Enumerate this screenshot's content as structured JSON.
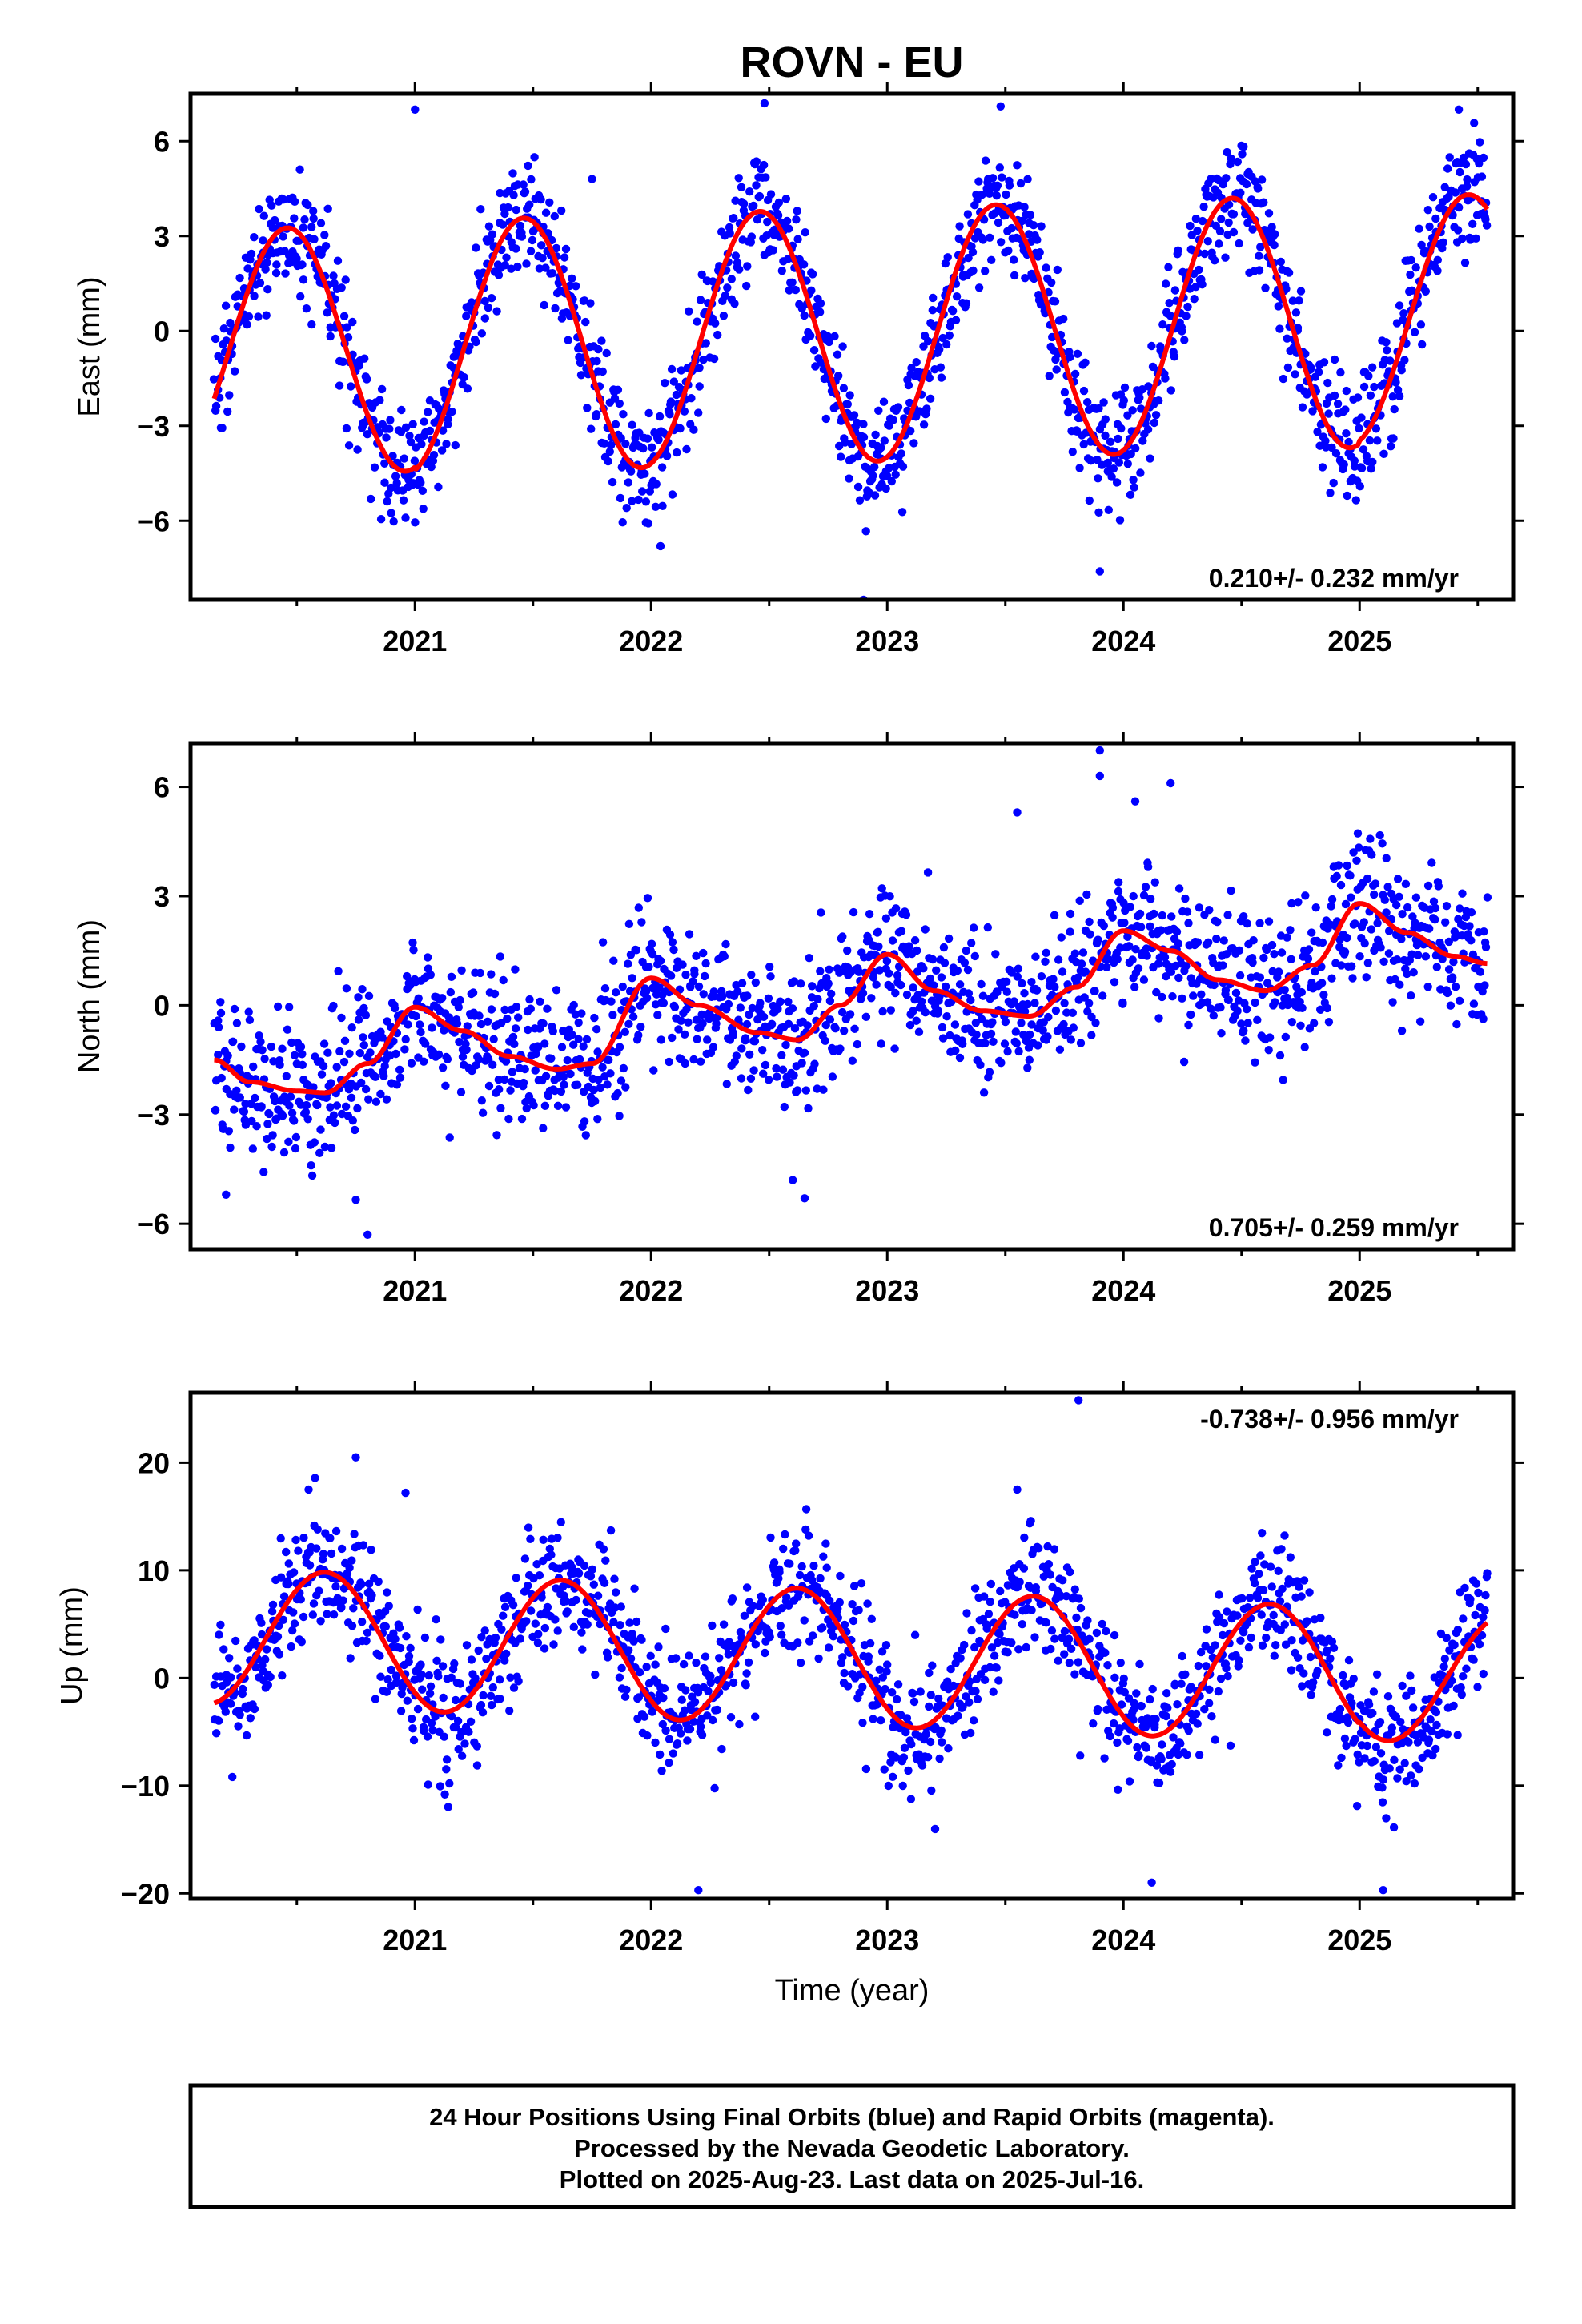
{
  "title": "ROVN - EU",
  "xlabel": "Time (year)",
  "footer": {
    "line1": "24 Hour Positions Using Final Orbits (blue) and Rapid Orbits (magenta).",
    "line2": "Processed by the Nevada Geodetic Laboratory.",
    "line3": "Plotted on 2025-Aug-23. Last data on 2025-Jul-16."
  },
  "colors": {
    "points": "#0000ff",
    "fit": "#ff0000",
    "frame": "#000000"
  },
  "chart_data": [
    {
      "type": "scatter",
      "panel": "east",
      "ylabel": "East (mm)",
      "rate_text": "0.210+/- 0.232 mm/yr",
      "rate_position": "bottom-right",
      "xlim": [
        2020.05,
        2025.65
      ],
      "ylim": [
        -8.5,
        7.5
      ],
      "yticks": [
        -6,
        -3,
        0,
        3,
        6
      ],
      "xticks": [
        2021,
        2022,
        2023,
        2024,
        2025
      ],
      "data_start": 2020.15,
      "data_end": 2025.54,
      "fit": {
        "offset": -0.15,
        "rate": 0.21,
        "ref": 2022.8,
        "amp": [
          3.9,
          4.0,
          4.0,
          4.0,
          4.0,
          3.9
        ],
        "phase_peak": 0.46
      },
      "noise": 0.95,
      "n_points": 1550,
      "outliers": [
        [
          2021.0,
          7.0
        ],
        [
          2022.48,
          7.2
        ],
        [
          2023.48,
          7.1
        ],
        [
          2022.9,
          -8.5
        ],
        [
          2023.9,
          -7.6
        ],
        [
          2025.42,
          7.0
        ],
        [
          2021.75,
          4.8
        ],
        [
          2022.04,
          -6.8
        ]
      ]
    },
    {
      "type": "scatter",
      "panel": "north",
      "ylabel": "North (mm)",
      "rate_text": "0.705+/- 0.259 mm/yr",
      "rate_position": "bottom-right",
      "xlim": [
        2020.05,
        2025.65
      ],
      "ylim": [
        -6.7,
        7.2
      ],
      "yticks": [
        -6,
        -3,
        0,
        3,
        6
      ],
      "xticks": [
        2021,
        2022,
        2023,
        2024,
        2025
      ],
      "data_start": 2020.15,
      "data_end": 2025.54,
      "fit_curve": {
        "x": [
          2020.15,
          2020.3,
          2020.5,
          2020.62,
          2020.8,
          2021.0,
          2021.2,
          2021.4,
          2021.6,
          2021.75,
          2022.0,
          2022.2,
          2022.45,
          2022.62,
          2022.8,
          2023.0,
          2023.2,
          2023.4,
          2023.6,
          2023.8,
          2024.0,
          2024.2,
          2024.4,
          2024.6,
          2024.8,
          2025.0,
          2025.2,
          2025.4,
          2025.54
        ],
        "y": [
          -1.5,
          -2.1,
          -2.35,
          -2.4,
          -1.6,
          -0.05,
          -0.7,
          -1.4,
          -1.75,
          -1.6,
          0.75,
          0.0,
          -0.75,
          -0.95,
          0.0,
          1.4,
          0.4,
          -0.15,
          -0.3,
          0.5,
          2.05,
          1.5,
          0.7,
          0.4,
          1.1,
          2.8,
          2.0,
          1.35,
          1.15
        ]
      },
      "noise": 1.0,
      "n_points": 1550,
      "outliers": [
        [
          2023.9,
          7.0
        ],
        [
          2020.8,
          -6.3
        ],
        [
          2022.65,
          -5.3
        ],
        [
          2020.2,
          -5.2
        ],
        [
          2023.9,
          6.3
        ],
        [
          2024.2,
          6.1
        ],
        [
          2023.55,
          5.3
        ],
        [
          2024.05,
          5.6
        ],
        [
          2022.6,
          -4.8
        ]
      ]
    },
    {
      "type": "scatter",
      "panel": "up",
      "ylabel": "Up (mm)",
      "rate_text": "-0.738+/- 0.956 mm/yr",
      "rate_position": "top-right",
      "xlim": [
        2020.05,
        2025.65
      ],
      "ylim": [
        -20.5,
        26.5
      ],
      "yticks": [
        -20,
        -10,
        0,
        10,
        20
      ],
      "xticks": [
        2021,
        2022,
        2023,
        2024,
        2025
      ],
      "data_start": 2020.15,
      "data_end": 2025.54,
      "fit": {
        "offset": 1.9,
        "rate": -0.74,
        "ref": 2022.8,
        "amp": [
          6.3,
          6.3,
          6.3,
          6.3,
          6.3,
          6.0
        ],
        "phase_peak": 0.62
      },
      "noise": 3.0,
      "n_points": 1500,
      "outliers": [
        [
          2023.81,
          25.8
        ],
        [
          2020.75,
          20.5
        ],
        [
          2020.96,
          17.2
        ],
        [
          2022.2,
          -19.7
        ],
        [
          2025.1,
          -19.7
        ],
        [
          2024.12,
          -19.0
        ],
        [
          2020.55,
          17.5
        ],
        [
          2023.55,
          17.5
        ]
      ]
    }
  ]
}
